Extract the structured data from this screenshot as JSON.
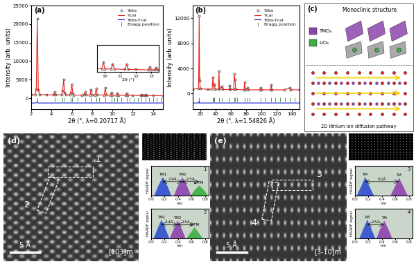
{
  "chart_data": [
    {
      "type": "line",
      "panel": "(a)",
      "xlabel": "2θ (°, λ=0.20717 Å)",
      "ylabel": "Intensity (arb. units)",
      "xlim": [
        2,
        15
      ],
      "ylim": [
        -3000,
        25000
      ],
      "xticks": [
        2,
        4,
        6,
        8,
        10,
        12,
        14
      ],
      "yticks": [
        0,
        5000,
        10000,
        15000,
        20000,
        25000
      ],
      "legend": "upper right",
      "x": [
        2.0,
        2.4,
        2.5,
        2.6,
        2.7,
        2.8,
        3.5,
        4.2,
        4.3,
        4.4,
        5.0,
        5.1,
        5.2,
        5.3,
        5.4,
        5.8,
        5.9,
        6.0,
        6.1,
        6.2,
        7.0,
        7.2,
        7.3,
        7.4,
        7.8,
        7.9,
        8.0,
        8.3,
        8.4,
        8.5,
        9.2,
        9.3,
        9.4,
        9.8,
        9.9,
        10.0,
        10.4,
        10.5,
        10.6,
        11.3,
        11.4,
        11.5,
        12.0,
        12.8,
        12.9,
        13.0,
        13.2,
        13.3,
        13.4,
        14.0,
        15.0
      ],
      "series": [
        {
          "name": "Yobs",
          "type": "scatter",
          "marker": "circle",
          "color": "#333333",
          "values": [
            900,
            1000,
            2500,
            21500,
            2200,
            1000,
            900,
            900,
            1600,
            900,
            900,
            2000,
            5000,
            1500,
            900,
            900,
            1500,
            3800,
            1400,
            850,
            800,
            1000,
            1700,
            900,
            850,
            2300,
            900,
            850,
            2600,
            900,
            850,
            2900,
            900,
            800,
            1500,
            800,
            800,
            1300,
            800,
            750,
            1300,
            750,
            750,
            700,
            1000,
            700,
            700,
            950,
            700,
            700,
            650
          ]
        },
        {
          "name": "Ycal",
          "type": "line",
          "line_style": "solid",
          "color": "#e8231b",
          "values": [
            900,
            1000,
            2400,
            21400,
            2300,
            1000,
            900,
            900,
            1550,
            900,
            900,
            1950,
            4950,
            1550,
            900,
            900,
            1450,
            3750,
            1450,
            850,
            800,
            1000,
            1680,
            900,
            850,
            2250,
            900,
            850,
            2580,
            900,
            850,
            2850,
            900,
            800,
            1480,
            800,
            800,
            1280,
            800,
            750,
            1280,
            750,
            750,
            700,
            990,
            700,
            700,
            940,
            700,
            700,
            650
          ]
        },
        {
          "name": "Yobs-Ycal",
          "type": "line",
          "line_style": "solid",
          "color": "#1f2bd1",
          "values": [
            -1300,
            -1300,
            -1250,
            -1000,
            -1350,
            -1300,
            -1300,
            -1300,
            -1280,
            -1300,
            -1300,
            -1280,
            -1250,
            -1320,
            -1300,
            -1300,
            -1280,
            -1260,
            -1320,
            -1300,
            -1300,
            -1300,
            -1290,
            -1300,
            -1300,
            -1270,
            -1300,
            -1300,
            -1280,
            -1300,
            -1300,
            -1260,
            -1300,
            -1300,
            -1290,
            -1300,
            -1300,
            -1290,
            -1300,
            -1300,
            -1290,
            -1300,
            -1300,
            -1300,
            -1295,
            -1300,
            -1300,
            -1295,
            -1300,
            -1300,
            -1300
          ]
        },
        {
          "name": "Bragg position",
          "type": "tick",
          "color": "#2e8b2e",
          "x": [
            2.6,
            4.3,
            5.1,
            5.2,
            5.9,
            6.0,
            6.6,
            7.3,
            7.9,
            8.4,
            8.7,
            9.3,
            9.9,
            10.2,
            10.5,
            10.9,
            11.4,
            11.7,
            12.1,
            12.5,
            12.9,
            13.3,
            13.6,
            14.0,
            14.4,
            14.8
          ]
        }
      ],
      "inset": {
        "xlabel": "2θ (°)",
        "xlim": [
          9.5,
          13.5
        ],
        "ylim": [
          500,
          3200
        ],
        "xticks": [
          10,
          11,
          12,
          13
        ],
        "tick_labels": "x"
      }
    },
    {
      "type": "line",
      "panel": "(b)",
      "xlabel": "2θ (°, λ=1.54826 Å)",
      "ylabel": "Intensity (arb. units)",
      "xlim": [
        10,
        150
      ],
      "ylim": [
        -2500,
        14000
      ],
      "xticks": [
        20,
        40,
        60,
        80,
        100,
        120,
        140
      ],
      "yticks": [
        0,
        4000,
        8000,
        12000
      ],
      "legend": "upper right",
      "x": [
        10,
        17.5,
        18.0,
        18.6,
        19.2,
        20,
        30,
        35.5,
        36.5,
        37.5,
        38.5,
        39.5,
        43.8,
        44.5,
        45.3,
        48.5,
        49.5,
        58.0,
        58.7,
        59.5,
        63.8,
        64.5,
        65.5,
        66.5,
        77.3,
        78.0,
        78.8,
        82.0,
        83.0,
        98.0,
        99.0,
        100.0,
        112.0,
        113.0,
        114.0,
        130.0,
        137.0,
        138.0,
        150.0
      ],
      "series": [
        {
          "name": "Yobs",
          "type": "scatter",
          "marker": "circle",
          "color": "#333333",
          "values": [
            700,
            800,
            2500,
            12300,
            2000,
            800,
            650,
            700,
            2600,
            1200,
            1500,
            700,
            700,
            3600,
            800,
            1100,
            650,
            650,
            1300,
            650,
            650,
            3100,
            2200,
            650,
            600,
            1800,
            600,
            900,
            600,
            600,
            900,
            600,
            600,
            1400,
            600,
            600,
            900,
            600,
            600
          ]
        },
        {
          "name": "Ycal",
          "type": "line",
          "line_style": "solid",
          "color": "#e8231b",
          "values": [
            700,
            800,
            2450,
            12200,
            2050,
            800,
            650,
            700,
            2550,
            1200,
            1480,
            700,
            700,
            3550,
            800,
            1090,
            650,
            650,
            1280,
            650,
            650,
            3050,
            2150,
            650,
            600,
            1760,
            600,
            890,
            600,
            600,
            890,
            600,
            600,
            1380,
            600,
            600,
            890,
            600,
            600
          ]
        },
        {
          "name": "Yobs-Ycal",
          "type": "line",
          "line_style": "solid",
          "color": "#1f2bd1",
          "values": [
            -1500,
            -1500,
            -1450,
            -1200,
            -1550,
            -1500,
            -1500,
            -1500,
            -1450,
            -1500,
            -1490,
            -1500,
            -1500,
            -1450,
            -1500,
            -1500,
            -1500,
            -1500,
            -1490,
            -1500,
            -1500,
            -1460,
            -1470,
            -1500,
            -1500,
            -1480,
            -1500,
            -1500,
            -1500,
            -1500,
            -1500,
            -1500,
            -1500,
            -1490,
            -1500,
            -1500,
            -1500,
            -1500,
            -1500
          ]
        },
        {
          "name": "Bragg position",
          "type": "tick",
          "color": "#2e8b2e",
          "x": [
            18.6,
            36.5,
            37.5,
            38.5,
            44.5,
            48.5,
            58.7,
            64.5,
            65.5,
            68.5,
            78.0,
            82.0,
            85.0,
            99.0,
            105.0,
            113.0,
            118.0,
            125.0,
            131.0,
            137.0,
            144.0
          ]
        }
      ]
    },
    {
      "type": "area",
      "id": "1",
      "xlabel": "nm",
      "ylabel": "HAADF signal",
      "xlim": [
        0,
        0.85
      ],
      "ylim": [
        0,
        1.6
      ],
      "xticks": [
        0.0,
        0.2,
        0.4,
        0.6,
        0.8
      ],
      "tick_labels": "x",
      "series": [
        {
          "name": "TM1",
          "color": "#2f4fd0",
          "x": [
            0.05,
            0.1,
            0.17,
            0.24,
            0.29
          ],
          "values": [
            0.05,
            0.5,
            1.0,
            0.5,
            0.05
          ]
        },
        {
          "name": "TM2",
          "color": "#8e44ad",
          "x": [
            0.34,
            0.39,
            0.46,
            0.53,
            0.58
          ],
          "values": [
            0.05,
            0.5,
            0.98,
            0.5,
            0.05
          ]
        },
        {
          "name": "Li/TM",
          "color": "#3cb043",
          "x": [
            0.59,
            0.64,
            0.71,
            0.78,
            0.83
          ],
          "values": [
            0.05,
            0.3,
            0.55,
            0.3,
            0.05
          ]
        }
      ],
      "annotations": [
        {
          "text": "2.9Å",
          "x1": 0.17,
          "x2": 0.46,
          "y": 0.75
        },
        {
          "text": "2.5Å",
          "x1": 0.46,
          "x2": 0.71,
          "y": 0.75
        }
      ]
    },
    {
      "type": "area",
      "id": "2",
      "xlabel": "nm",
      "ylabel": "HAADF signal",
      "xlim": [
        0,
        0.85
      ],
      "ylim": [
        0,
        1.6
      ],
      "xticks": [
        0.0,
        0.2,
        0.4,
        0.6,
        0.8
      ],
      "tick_labels": "x",
      "series": [
        {
          "name": "TM1",
          "color": "#2f4fd0",
          "x": [
            0.04,
            0.09,
            0.15,
            0.21,
            0.26
          ],
          "values": [
            0.05,
            0.5,
            1.0,
            0.5,
            0.05
          ]
        },
        {
          "name": "TM2",
          "color": "#8e44ad",
          "x": [
            0.28,
            0.33,
            0.39,
            0.45,
            0.5
          ],
          "values": [
            0.05,
            0.5,
            0.95,
            0.5,
            0.05
          ]
        },
        {
          "name": "Li/TM",
          "color": "#3cb043",
          "x": [
            0.53,
            0.58,
            0.64,
            0.7,
            0.75
          ],
          "values": [
            0.05,
            0.3,
            0.6,
            0.3,
            0.05
          ]
        }
      ],
      "annotations": [
        {
          "text": "2.4Å",
          "x1": 0.15,
          "x2": 0.39,
          "y": 0.75
        },
        {
          "text": "2.5Å",
          "x1": 0.39,
          "x2": 0.64,
          "y": 0.75
        }
      ]
    },
    {
      "type": "area",
      "id": "3",
      "xlabel": "nm",
      "ylabel": "HAADF signal",
      "xlim": [
        0,
        0.85
      ],
      "ylim": [
        0,
        1.6
      ],
      "xticks": [
        0.0,
        0.2,
        0.4,
        0.6,
        0.8
      ],
      "tick_labels": "x",
      "series": [
        {
          "name": "TM",
          "color": "#2f4fd0",
          "x": [
            0.03,
            0.09,
            0.15,
            0.21,
            0.27
          ],
          "values": [
            0.05,
            0.5,
            1.0,
            0.5,
            0.05
          ]
        },
        {
          "name": "TM",
          "color": "#8e44ad",
          "x": [
            0.53,
            0.59,
            0.65,
            0.71,
            0.77
          ],
          "values": [
            0.05,
            0.5,
            0.95,
            0.5,
            0.05
          ]
        }
      ],
      "annotations": [
        {
          "text": "5.0Å",
          "x1": 0.15,
          "x2": 0.65,
          "y": 0.75
        }
      ]
    },
    {
      "type": "area",
      "id": "4",
      "xlabel": "nm",
      "ylabel": "HAADF signal",
      "xlim": [
        0,
        0.85
      ],
      "ylim": [
        0,
        1.6
      ],
      "xticks": [
        0.0,
        0.2,
        0.4,
        0.6,
        0.8
      ],
      "tick_labels": "x",
      "series": [
        {
          "name": "TM",
          "color": "#2f4fd0",
          "x": [
            0.07,
            0.12,
            0.18,
            0.24,
            0.29
          ],
          "values": [
            0.05,
            0.5,
            1.0,
            0.5,
            0.05
          ]
        },
        {
          "name": "TM",
          "color": "#8e44ad",
          "x": [
            0.32,
            0.37,
            0.43,
            0.49,
            0.54
          ],
          "values": [
            0.05,
            0.5,
            0.95,
            0.5,
            0.05
          ]
        }
      ],
      "annotations": [
        {
          "text": "2.5Å",
          "x1": 0.18,
          "x2": 0.43,
          "y": 0.75
        }
      ]
    }
  ],
  "structure": {
    "panel": "(c)",
    "title": "Monoclinic structure",
    "polyhedra": [
      {
        "name": "TMO₆",
        "color": "#8e44ad"
      },
      {
        "name": "LiO₆",
        "color": "#3cb043"
      }
    ],
    "caption": "2D lithium ion diffusion pathway"
  },
  "micrographs": [
    {
      "panel": "(d)",
      "regions": [
        "1",
        "2"
      ],
      "scale_bar": "5 Å",
      "zone_axis": "[103]m"
    },
    {
      "panel": "(e)",
      "regions": [
        "3",
        "4"
      ],
      "scale_bar": "5 Å",
      "zone_axis": "[3-10]m"
    }
  ]
}
